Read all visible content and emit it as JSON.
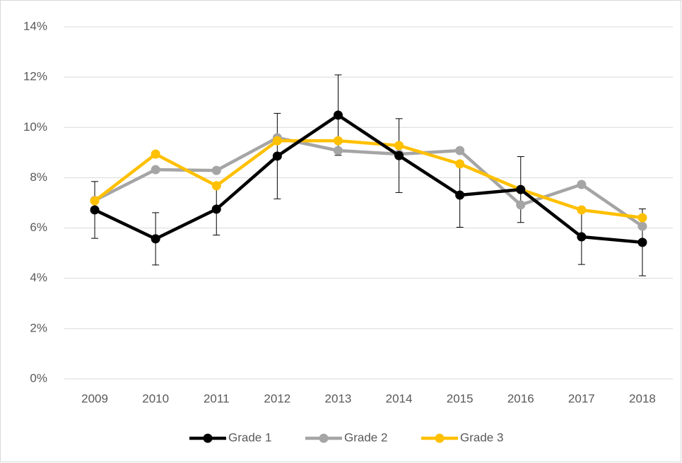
{
  "chart_data": {
    "type": "line",
    "categories": [
      "2009",
      "2010",
      "2011",
      "2012",
      "2013",
      "2014",
      "2015",
      "2016",
      "2017",
      "2018"
    ],
    "series": [
      {
        "name": "Grade 1",
        "color": "#000000",
        "values": [
          6.72,
          5.57,
          6.75,
          8.86,
          10.49,
          8.88,
          7.31,
          7.53,
          5.65,
          5.43
        ],
        "errors": [
          1.13,
          1.04,
          1.03,
          1.7,
          1.6,
          1.47,
          1.28,
          1.31,
          1.1,
          1.33
        ]
      },
      {
        "name": "Grade 2",
        "color": "#a5a5a5",
        "values": [
          7.1,
          8.32,
          8.29,
          9.59,
          9.08,
          8.94,
          9.08,
          6.92,
          7.73,
          6.07
        ]
      },
      {
        "name": "Grade 3",
        "color": "#ffc000",
        "values": [
          7.08,
          8.94,
          7.68,
          9.47,
          9.47,
          9.28,
          8.55,
          7.53,
          6.72,
          6.41
        ]
      }
    ],
    "ylim": [
      0,
      14
    ],
    "yticks": [
      {
        "value": 0,
        "label": "0%"
      },
      {
        "value": 2,
        "label": "2%"
      },
      {
        "value": 4,
        "label": "4%"
      },
      {
        "value": 6,
        "label": "6%"
      },
      {
        "value": 8,
        "label": "8%"
      },
      {
        "value": 10,
        "label": "10%"
      },
      {
        "value": 12,
        "label": "12%"
      },
      {
        "value": 14,
        "label": "14%"
      }
    ],
    "grid": true,
    "legend": "bottom"
  }
}
